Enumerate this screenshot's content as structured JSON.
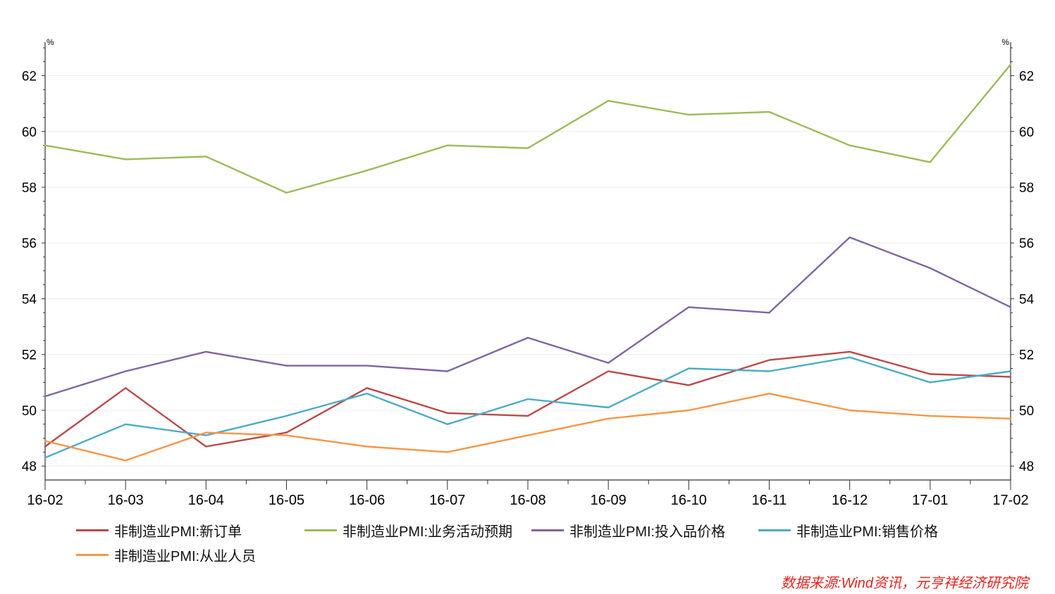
{
  "chart_data": {
    "type": "line",
    "title": "",
    "xlabel": "",
    "ylabel": "%",
    "y_unit_left": "%",
    "y_unit_right": "%",
    "ylim": [
      47.5,
      63.2
    ],
    "y_ticks": [
      48,
      50,
      52,
      54,
      56,
      58,
      60,
      62
    ],
    "categories": [
      "16-02",
      "16-03",
      "16-04",
      "16-05",
      "16-06",
      "16-07",
      "16-08",
      "16-09",
      "16-10",
      "16-11",
      "16-12",
      "17-01",
      "17-02"
    ],
    "grid": true,
    "legend_position": "bottom",
    "series": [
      {
        "name": "非制造业PMI:新订单",
        "color": "#b94a48",
        "values": [
          48.7,
          50.8,
          48.7,
          49.2,
          50.8,
          49.9,
          49.8,
          51.4,
          50.9,
          51.8,
          52.1,
          51.3,
          51.2
        ]
      },
      {
        "name": "非制造业PMI:业务活动预期",
        "color": "#9bbb59",
        "values": [
          59.5,
          59.0,
          59.1,
          57.8,
          58.6,
          59.5,
          59.4,
          61.1,
          60.6,
          60.7,
          59.5,
          58.9,
          62.4
        ]
      },
      {
        "name": "非制造业PMI:投入品价格",
        "color": "#8064a2",
        "values": [
          50.5,
          51.4,
          52.1,
          51.6,
          51.6,
          51.4,
          52.6,
          51.7,
          53.7,
          53.5,
          56.2,
          55.1,
          53.7
        ]
      },
      {
        "name": "非制造业PMI:销售价格",
        "color": "#4bacc6",
        "values": [
          48.3,
          49.5,
          49.1,
          49.8,
          50.6,
          49.5,
          50.4,
          50.1,
          51.5,
          51.4,
          51.9,
          51.0,
          51.4
        ]
      },
      {
        "name": "非制造业PMI:从业人员",
        "color": "#f79646",
        "values": [
          48.9,
          48.2,
          49.2,
          49.1,
          48.7,
          48.5,
          49.1,
          49.7,
          50.0,
          50.6,
          50.0,
          49.8,
          49.7
        ]
      }
    ]
  },
  "footer": {
    "source": "数据来源:Wind资讯，元亨祥经济研究院"
  }
}
